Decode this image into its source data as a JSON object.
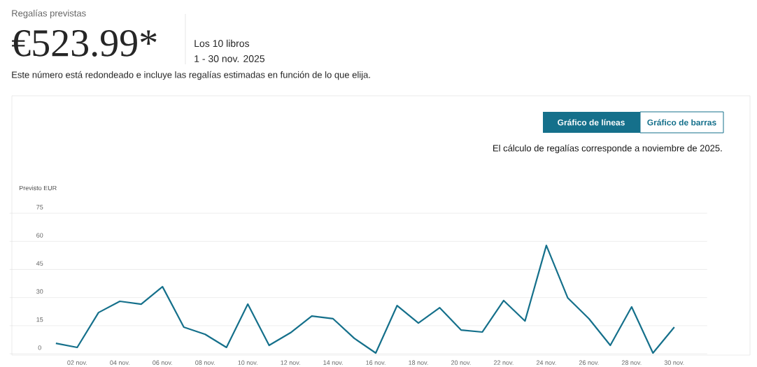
{
  "chart_data": {
    "type": "line",
    "title": "Regalías previstas",
    "subtitle": "€523.99*",
    "ylabel": "Previsto EUR",
    "annotations": [
      "Los 10 libros",
      "1 - 30 nov. 2025",
      "Este número está redondeado e incluye las regalías estimadas en función de lo que elija.",
      "Gráfico de líneas",
      "Gráfico de barras",
      "El cálculo de regalías corresponde a noviembre de 2025."
    ],
    "categories": [
      null,
      "02 nov.",
      null,
      "04 nov.",
      null,
      "06 nov.",
      null,
      "08 nov.",
      null,
      "10 nov.",
      null,
      "12 nov.",
      null,
      "14 nov.",
      null,
      "16 nov.",
      null,
      "18 nov.",
      null,
      "20 nov.",
      null,
      "22 nov.",
      null,
      "24 nov.",
      null,
      "26 nov.",
      null,
      "28 nov.",
      null,
      "30 nov."
    ],
    "values": [
      5.6,
      3.4,
      22,
      28,
      26.5,
      35.8,
      14.2,
      10.4,
      3.4,
      26.5,
      4.5,
      11.2,
      20.1,
      18.7,
      8.2,
      0.4,
      25.7,
      16.4,
      24.6,
      12.7,
      11.6,
      28.4,
      17.5,
      57.8,
      29.9,
      18.7,
      4.5,
      25,
      0.4,
      14.2
    ],
    "color": "#15708b",
    "ylim": [
      0,
      75
    ],
    "yticks": [
      0,
      15,
      30,
      45,
      60,
      75
    ],
    "grid": "y",
    "marker": "none",
    "line_style": "solid"
  }
}
